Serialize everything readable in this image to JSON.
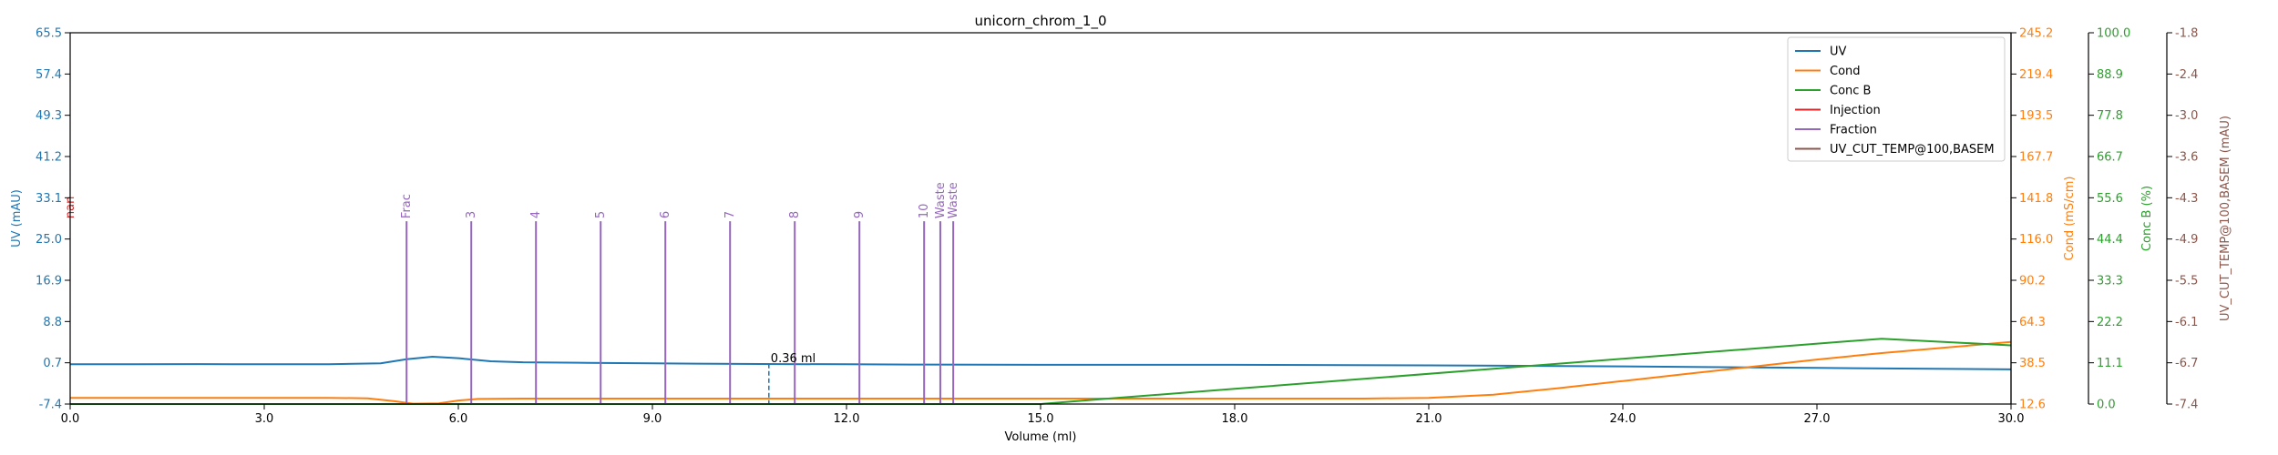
{
  "chart_data": {
    "type": "line",
    "title": "unicorn_chrom_1_0",
    "xlabel": "Volume (ml)",
    "xlim": [
      0,
      30
    ],
    "x_ticks": [
      "0.0",
      "3.0",
      "6.0",
      "9.0",
      "12.0",
      "15.0",
      "18.0",
      "21.0",
      "24.0",
      "27.0",
      "30.0"
    ],
    "grid": false,
    "legend_position": "top-right",
    "axes": [
      {
        "id": "uv",
        "label": "UV (mAU)",
        "side": "left",
        "color": "#1f77b4",
        "ylim": [
          -7.4,
          65.5
        ],
        "ticks": [
          "-7.4",
          "0.7",
          "8.8",
          "16.9",
          "25.0",
          "33.1",
          "41.2",
          "49.3",
          "57.4",
          "65.5"
        ]
      },
      {
        "id": "cond",
        "label": "Cond (mS/cm)",
        "side": "right",
        "color": "#ff7f0e",
        "ylim": [
          12.6,
          245.2
        ],
        "ticks": [
          "12.6",
          "38.5",
          "64.3",
          "90.2",
          "116.0",
          "141.8",
          "167.7",
          "193.5",
          "219.4",
          "245.2"
        ]
      },
      {
        "id": "concb",
        "label": "Conc B (%)",
        "side": "right",
        "color": "#2ca02c",
        "ylim": [
          0,
          100
        ],
        "ticks": [
          "0.0",
          "11.1",
          "22.2",
          "33.3",
          "44.4",
          "55.6",
          "66.7",
          "77.8",
          "88.9",
          "100.0"
        ]
      },
      {
        "id": "temp",
        "label": "UV_CUT_TEMP@100,BASEM (mAU)",
        "side": "right",
        "color": "#8c564b",
        "ylim": [
          -7.4,
          -1.8
        ],
        "ticks": [
          "-7.4",
          "-6.7",
          "-6.1",
          "-5.5",
          "-4.9",
          "-4.3",
          "-3.6",
          "-3.0",
          "-2.4",
          "-1.8"
        ]
      }
    ],
    "series": [
      {
        "name": "UV",
        "axis": "uv",
        "color": "#1f77b4",
        "x": [
          0,
          1,
          2,
          3,
          4,
          4.8,
          5.2,
          5.6,
          6.0,
          6.5,
          7.0,
          8.0,
          9.0,
          10.0,
          11.0,
          12.0,
          13.0,
          15.0,
          18.0,
          21.0,
          24.0,
          27.0,
          30.0
        ],
        "y": [
          0.4,
          0.4,
          0.45,
          0.4,
          0.4,
          0.6,
          1.4,
          1.9,
          1.6,
          1.0,
          0.8,
          0.7,
          0.6,
          0.5,
          0.45,
          0.4,
          0.35,
          0.3,
          0.3,
          0.2,
          0.0,
          -0.3,
          -0.6
        ]
      },
      {
        "name": "Cond",
        "axis": "cond",
        "color": "#ff7f0e",
        "x": [
          0,
          2,
          4,
          4.6,
          5.0,
          5.3,
          5.7,
          6.0,
          6.3,
          7.0,
          10.0,
          15.0,
          20.0,
          21.0,
          22.0,
          23.0,
          24.0,
          25.0,
          26.0,
          27.0,
          28.0,
          29.0,
          30.0
        ],
        "y": [
          16.5,
          16.5,
          16.5,
          16.2,
          14.5,
          12.8,
          13.0,
          14.8,
          15.8,
          16.0,
          16.0,
          16.0,
          16.0,
          16.5,
          18.5,
          22.5,
          27.0,
          31.5,
          36.0,
          40.5,
          44.5,
          48.0,
          51.5
        ]
      },
      {
        "name": "Conc B",
        "axis": "concb",
        "color": "#2ca02c",
        "x": [
          0,
          15.0,
          16.0,
          18.0,
          20.0,
          22.0,
          24.0,
          26.0,
          28.0,
          30.0
        ],
        "y": [
          0,
          0,
          1.4,
          4.1,
          6.8,
          9.5,
          12.2,
          14.9,
          17.6,
          15.8
        ]
      },
      {
        "name": "Injection",
        "axis": "uv",
        "color": "#d62728",
        "x": [],
        "y": []
      },
      {
        "name": "Fraction",
        "axis": "uv",
        "color": "#9467bd",
        "x": [],
        "y": []
      },
      {
        "name": "UV_CUT_TEMP@100,BASEM",
        "axis": "temp",
        "color": "#8c564b",
        "x": [],
        "y": []
      }
    ],
    "fractions": [
      {
        "x": 5.2,
        "label": "Frac"
      },
      {
        "x": 6.2,
        "label": "3"
      },
      {
        "x": 7.2,
        "label": "4"
      },
      {
        "x": 8.2,
        "label": "5"
      },
      {
        "x": 9.2,
        "label": "6"
      },
      {
        "x": 10.2,
        "label": "7"
      },
      {
        "x": 11.2,
        "label": "8"
      },
      {
        "x": 12.2,
        "label": "9"
      },
      {
        "x": 13.2,
        "label": "10"
      },
      {
        "x": 13.45,
        "label": "Waste"
      },
      {
        "x": 13.65,
        "label": "Waste"
      }
    ],
    "fraction_top_y": 28.5,
    "injection": {
      "x": 0.0,
      "label": "nan",
      "color": "#d62728"
    },
    "annotation": {
      "x": 10.8,
      "y_top": 0.5,
      "label": "0.36 ml",
      "color": "#1f77b4"
    },
    "legend": [
      "UV",
      "Cond",
      "Conc B",
      "Injection",
      "Fraction",
      "UV_CUT_TEMP@100,BASEM"
    ]
  }
}
